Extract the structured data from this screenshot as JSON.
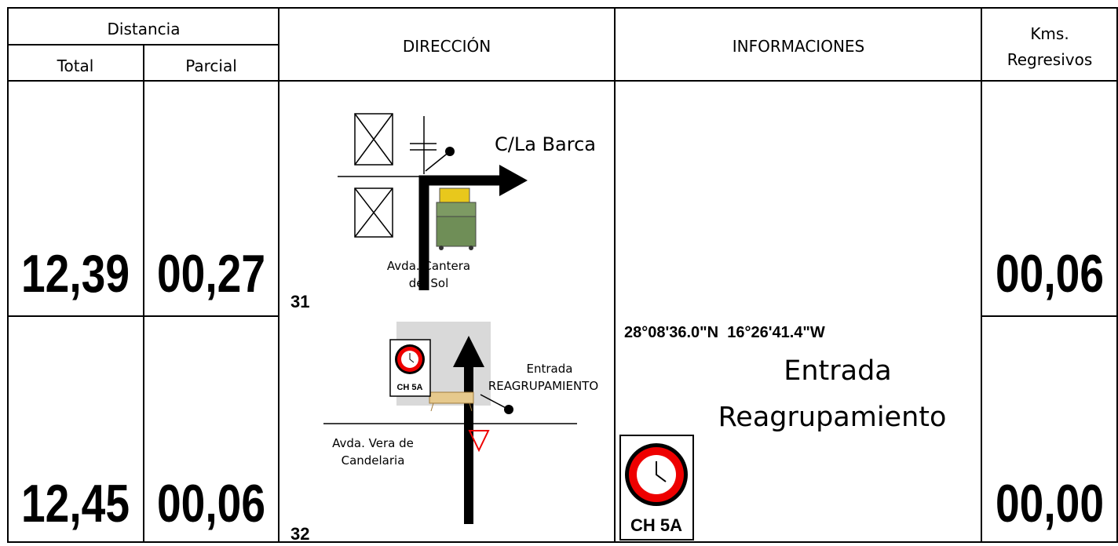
{
  "header": {
    "distance": "Distancia",
    "total": "Total",
    "partial": "Parcial",
    "direction": "DIRECCIÓN",
    "info": "INFORMACIONES",
    "kms": [
      "Kms.",
      "Regresivos"
    ]
  },
  "rows": [
    {
      "number": "31",
      "total": "12,39",
      "partial": "00,27",
      "remaining": "00,06",
      "labels": [
        "C/La Barca",
        "Avda. Cantera",
        "del Sol"
      ]
    },
    {
      "number": "32",
      "total": "12,45",
      "partial": "00,06",
      "remaining": "00,00",
      "labels": [
        "Entrada",
        "REAGRUPAMIENTO",
        "Avda. Vera de",
        "Candelaria",
        "CH 5A"
      ]
    }
  ],
  "info": {
    "coordinates": "28°08'36.0\"N  16°26'41.4\"W",
    "text": [
      "Entrada",
      "Reagrupamiento"
    ],
    "sign": "CH 5A"
  }
}
